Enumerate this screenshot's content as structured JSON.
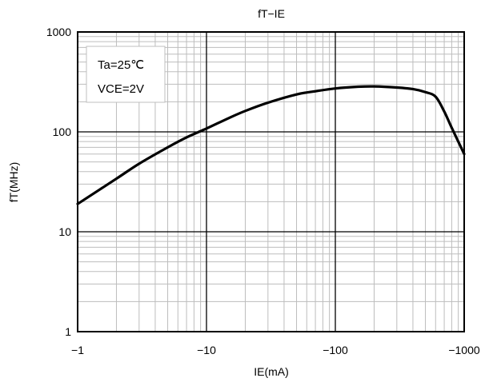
{
  "chart_data": {
    "type": "line",
    "title": "fT−IE",
    "xlabel": "IE(mA)",
    "ylabel": "fT(MHz)",
    "x_scale": "log",
    "y_scale": "log",
    "xlim": [
      -1,
      -1000
    ],
    "ylim": [
      1,
      1000
    ],
    "x_ticks": [
      {
        "value": -1,
        "label": "−1"
      },
      {
        "value": -10,
        "label": "−10"
      },
      {
        "value": -100,
        "label": "−100"
      },
      {
        "value": -1000,
        "label": "−1000"
      }
    ],
    "y_ticks": [
      {
        "value": 1,
        "label": "1"
      },
      {
        "value": 10,
        "label": "10"
      },
      {
        "value": 100,
        "label": "100"
      },
      {
        "value": 1000,
        "label": "1000"
      }
    ],
    "grid": true,
    "annotations": [
      "Ta=25℃",
      "VCE=2V"
    ],
    "series": [
      {
        "color": "#000000",
        "x": [
          -1,
          -2,
          -3,
          -5,
          -7,
          -10,
          -15,
          -20,
          -30,
          -50,
          -70,
          -100,
          -150,
          -200,
          -300,
          -400,
          -500,
          -600,
          -700,
          -800,
          -1000
        ],
        "y": [
          19,
          34,
          48,
          70,
          88,
          108,
          138,
          162,
          196,
          237,
          255,
          272,
          283,
          285,
          278,
          268,
          250,
          225,
          160,
          110,
          60
        ]
      }
    ]
  }
}
